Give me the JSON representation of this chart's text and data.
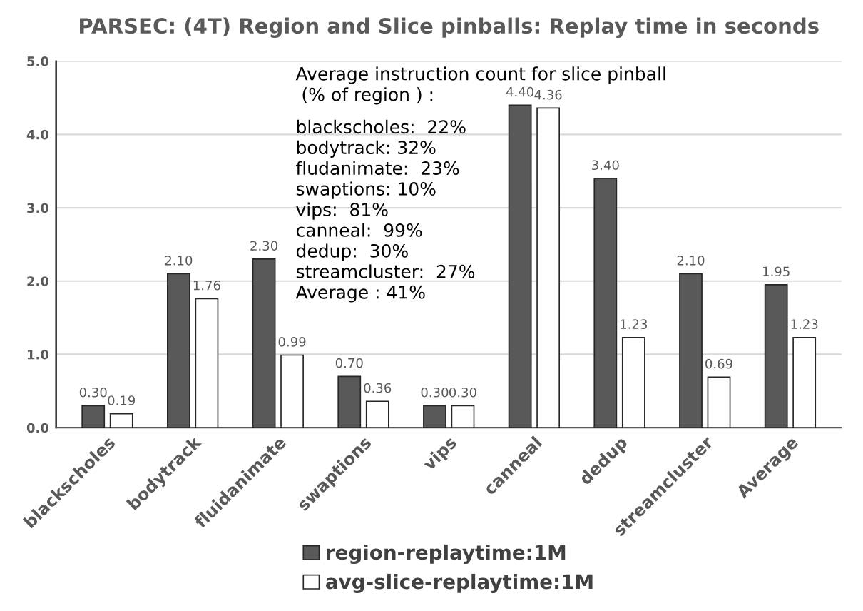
{
  "chart_data": {
    "type": "bar",
    "title": "PARSEC: (4T) Region and Slice pinballs: Replay time in seconds",
    "categories": [
      "blackscholes",
      "bodytrack",
      "fluidanimate",
      "swaptions",
      "vips",
      "canneal",
      "dedup",
      "streamcluster",
      "Average"
    ],
    "series": [
      {
        "name": "region-replaytime:1M",
        "color": "#595959",
        "values": [
          0.3,
          2.1,
          2.3,
          0.7,
          0.3,
          4.4,
          3.4,
          2.1,
          1.95
        ],
        "value_labels": [
          "0.30",
          "2.10",
          "2.30",
          "0.70",
          "0.30",
          "4.40",
          "3.40",
          "2.10",
          "1.95"
        ]
      },
      {
        "name": "avg-slice-replaytime:1M",
        "color": "#ffffff",
        "values": [
          0.19,
          1.76,
          0.99,
          0.36,
          0.3,
          4.36,
          1.23,
          0.69,
          1.23
        ],
        "value_labels": [
          "0.19",
          "1.76",
          "0.99",
          "0.36",
          "0.30",
          "4.36",
          "1.23",
          "0.69",
          "1.23"
        ]
      }
    ],
    "ylim": [
      0,
      5
    ],
    "yticks": [
      "0.0",
      "1.0",
      "2.0",
      "3.0",
      "4.0",
      "5.0"
    ],
    "grid": "y",
    "legend": "bottom",
    "annotations": [
      "Average instruction count for slice pinball\n (% of region ) :",
      "blackscholes:  22%\nbodytrack: 32%\nfludanimate:  23%\nswaptions: 10%\nvips:  81%\ncanneal:  99%\ndedup:  30%\nstreamcluster:  27%\nAverage : 41%"
    ]
  }
}
